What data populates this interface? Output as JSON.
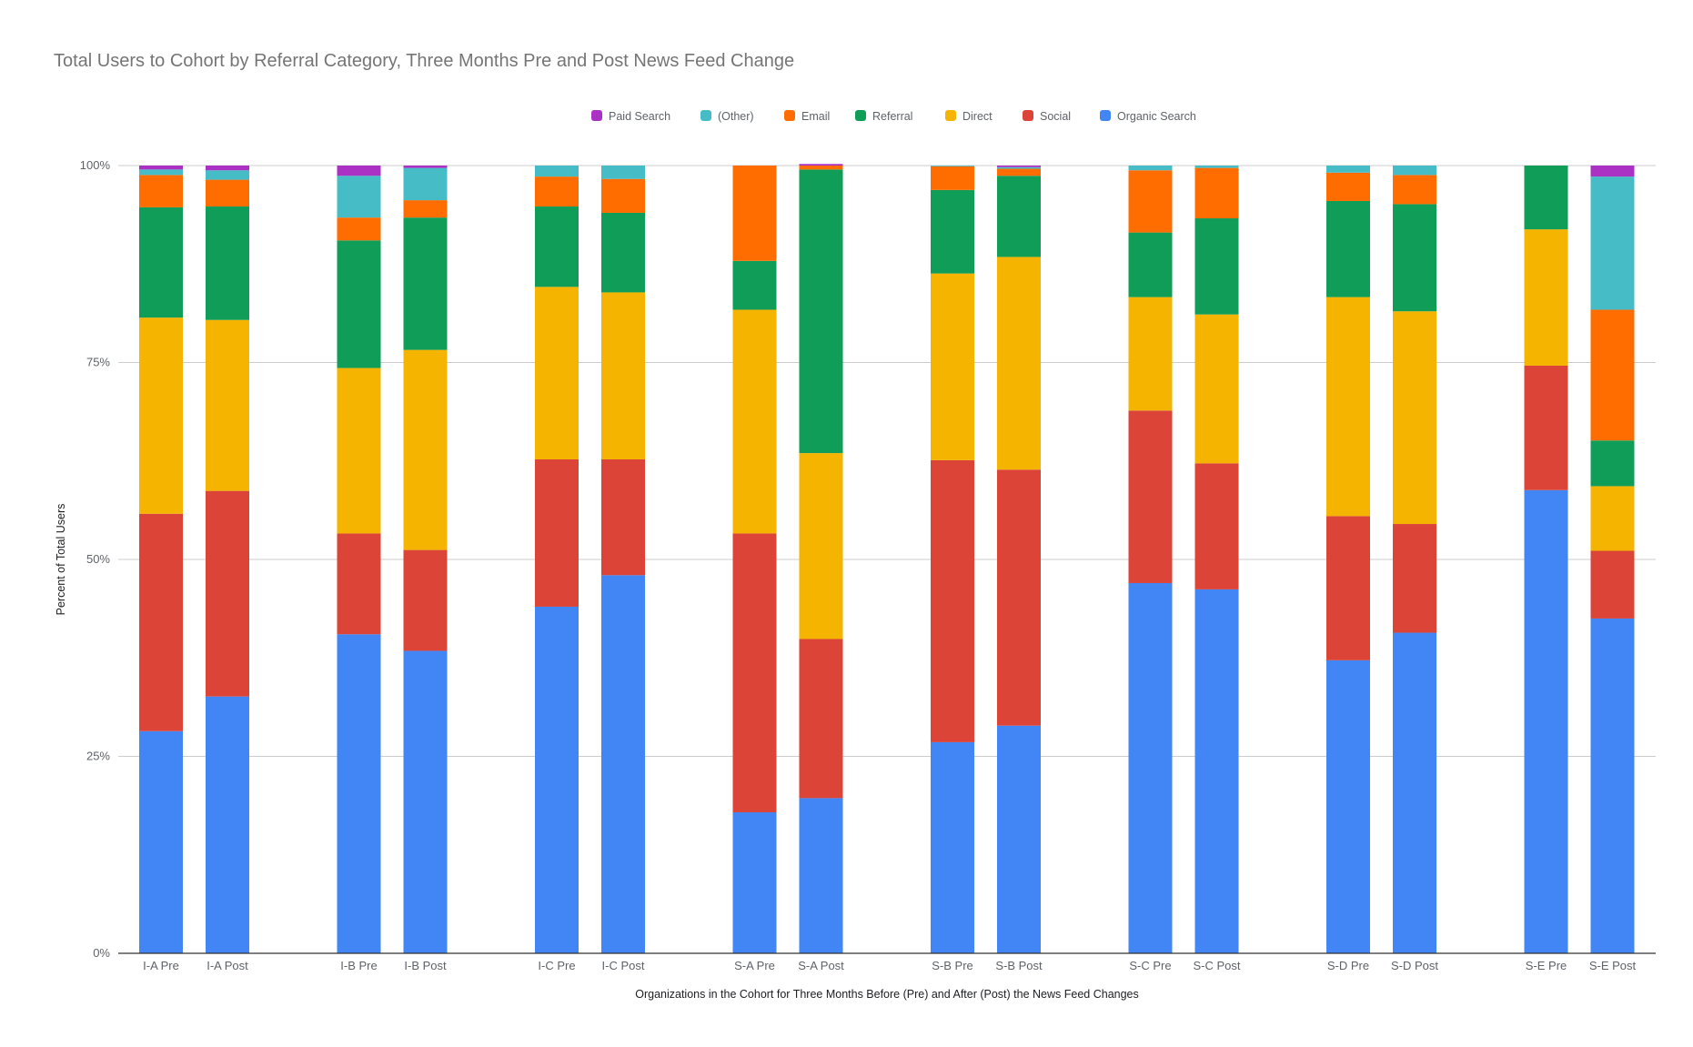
{
  "chart_data": {
    "type": "bar",
    "stacked": true,
    "percent_stacked": true,
    "title": "Total Users to Cohort by Referral Category, Three Months Pre and Post News Feed Change",
    "xlabel": "Organizations in the Cohort for Three Months Before (Pre) and After (Post) the News Feed Changes",
    "ylabel": "Percent of Total Users",
    "ylim": [
      0,
      100
    ],
    "y_ticks": [
      "0%",
      "25%",
      "50%",
      "75%",
      "100%"
    ],
    "grid": true,
    "legend_position": "top",
    "categories": [
      "I-A Pre",
      "I-A Post",
      "I-B Pre",
      "I-B Post",
      "I-C Pre",
      "I-C Post",
      "S-A Pre",
      "S-A Post",
      "S-B Pre",
      "S-B Post",
      "S-C Pre",
      "S-C Post",
      "S-D Pre",
      "S-D Post",
      "S-E Pre",
      "S-E Post"
    ],
    "legend_order": [
      "Paid Search",
      "(Other)",
      "Email",
      "Referral",
      "Direct",
      "Social",
      "Organic Search"
    ],
    "series": [
      {
        "name": "Organic Search",
        "color": "#4285f4",
        "values": [
          28.2,
          32.6,
          40.5,
          38.4,
          44.0,
          48.0,
          17.9,
          19.7,
          26.8,
          28.9,
          47.0,
          46.2,
          37.2,
          40.7,
          58.8,
          42.5
        ]
      },
      {
        "name": "Social",
        "color": "#db4437",
        "values": [
          27.6,
          26.1,
          12.8,
          12.8,
          18.7,
          14.7,
          35.4,
          20.2,
          35.8,
          32.5,
          21.9,
          16.0,
          18.3,
          13.8,
          15.8,
          8.6
        ]
      },
      {
        "name": "Direct",
        "color": "#f4b400",
        "values": [
          24.9,
          21.7,
          21.0,
          25.4,
          21.9,
          21.2,
          28.4,
          23.6,
          23.7,
          27.0,
          14.4,
          18.9,
          27.8,
          27.0,
          17.3,
          8.2
        ]
      },
      {
        "name": "Referral",
        "color": "#0f9d58",
        "values": [
          14.0,
          14.4,
          16.2,
          16.8,
          10.2,
          10.1,
          6.2,
          36.0,
          10.6,
          10.3,
          8.2,
          12.2,
          12.2,
          13.6,
          8.1,
          5.8
        ]
      },
      {
        "name": "Email",
        "color": "#ff6d00",
        "values": [
          4.1,
          3.4,
          2.9,
          2.2,
          3.8,
          4.3,
          12.1,
          0.5,
          3.0,
          0.9,
          7.9,
          6.4,
          3.6,
          3.7,
          0,
          16.6
        ]
      },
      {
        "name": "(Other)",
        "color": "#46bdc6",
        "values": [
          0.7,
          1.2,
          5.3,
          4.1,
          1.4,
          1.7,
          0,
          0,
          0.1,
          0.2,
          0.6,
          0.3,
          0.9,
          1.2,
          0,
          16.9
        ]
      },
      {
        "name": "Paid Search",
        "color": "#ab30c4",
        "values": [
          0.5,
          0.6,
          1.3,
          0.3,
          0,
          0,
          0,
          0.2,
          0,
          0.2,
          0,
          0,
          0,
          0,
          0,
          1.4
        ]
      }
    ]
  }
}
